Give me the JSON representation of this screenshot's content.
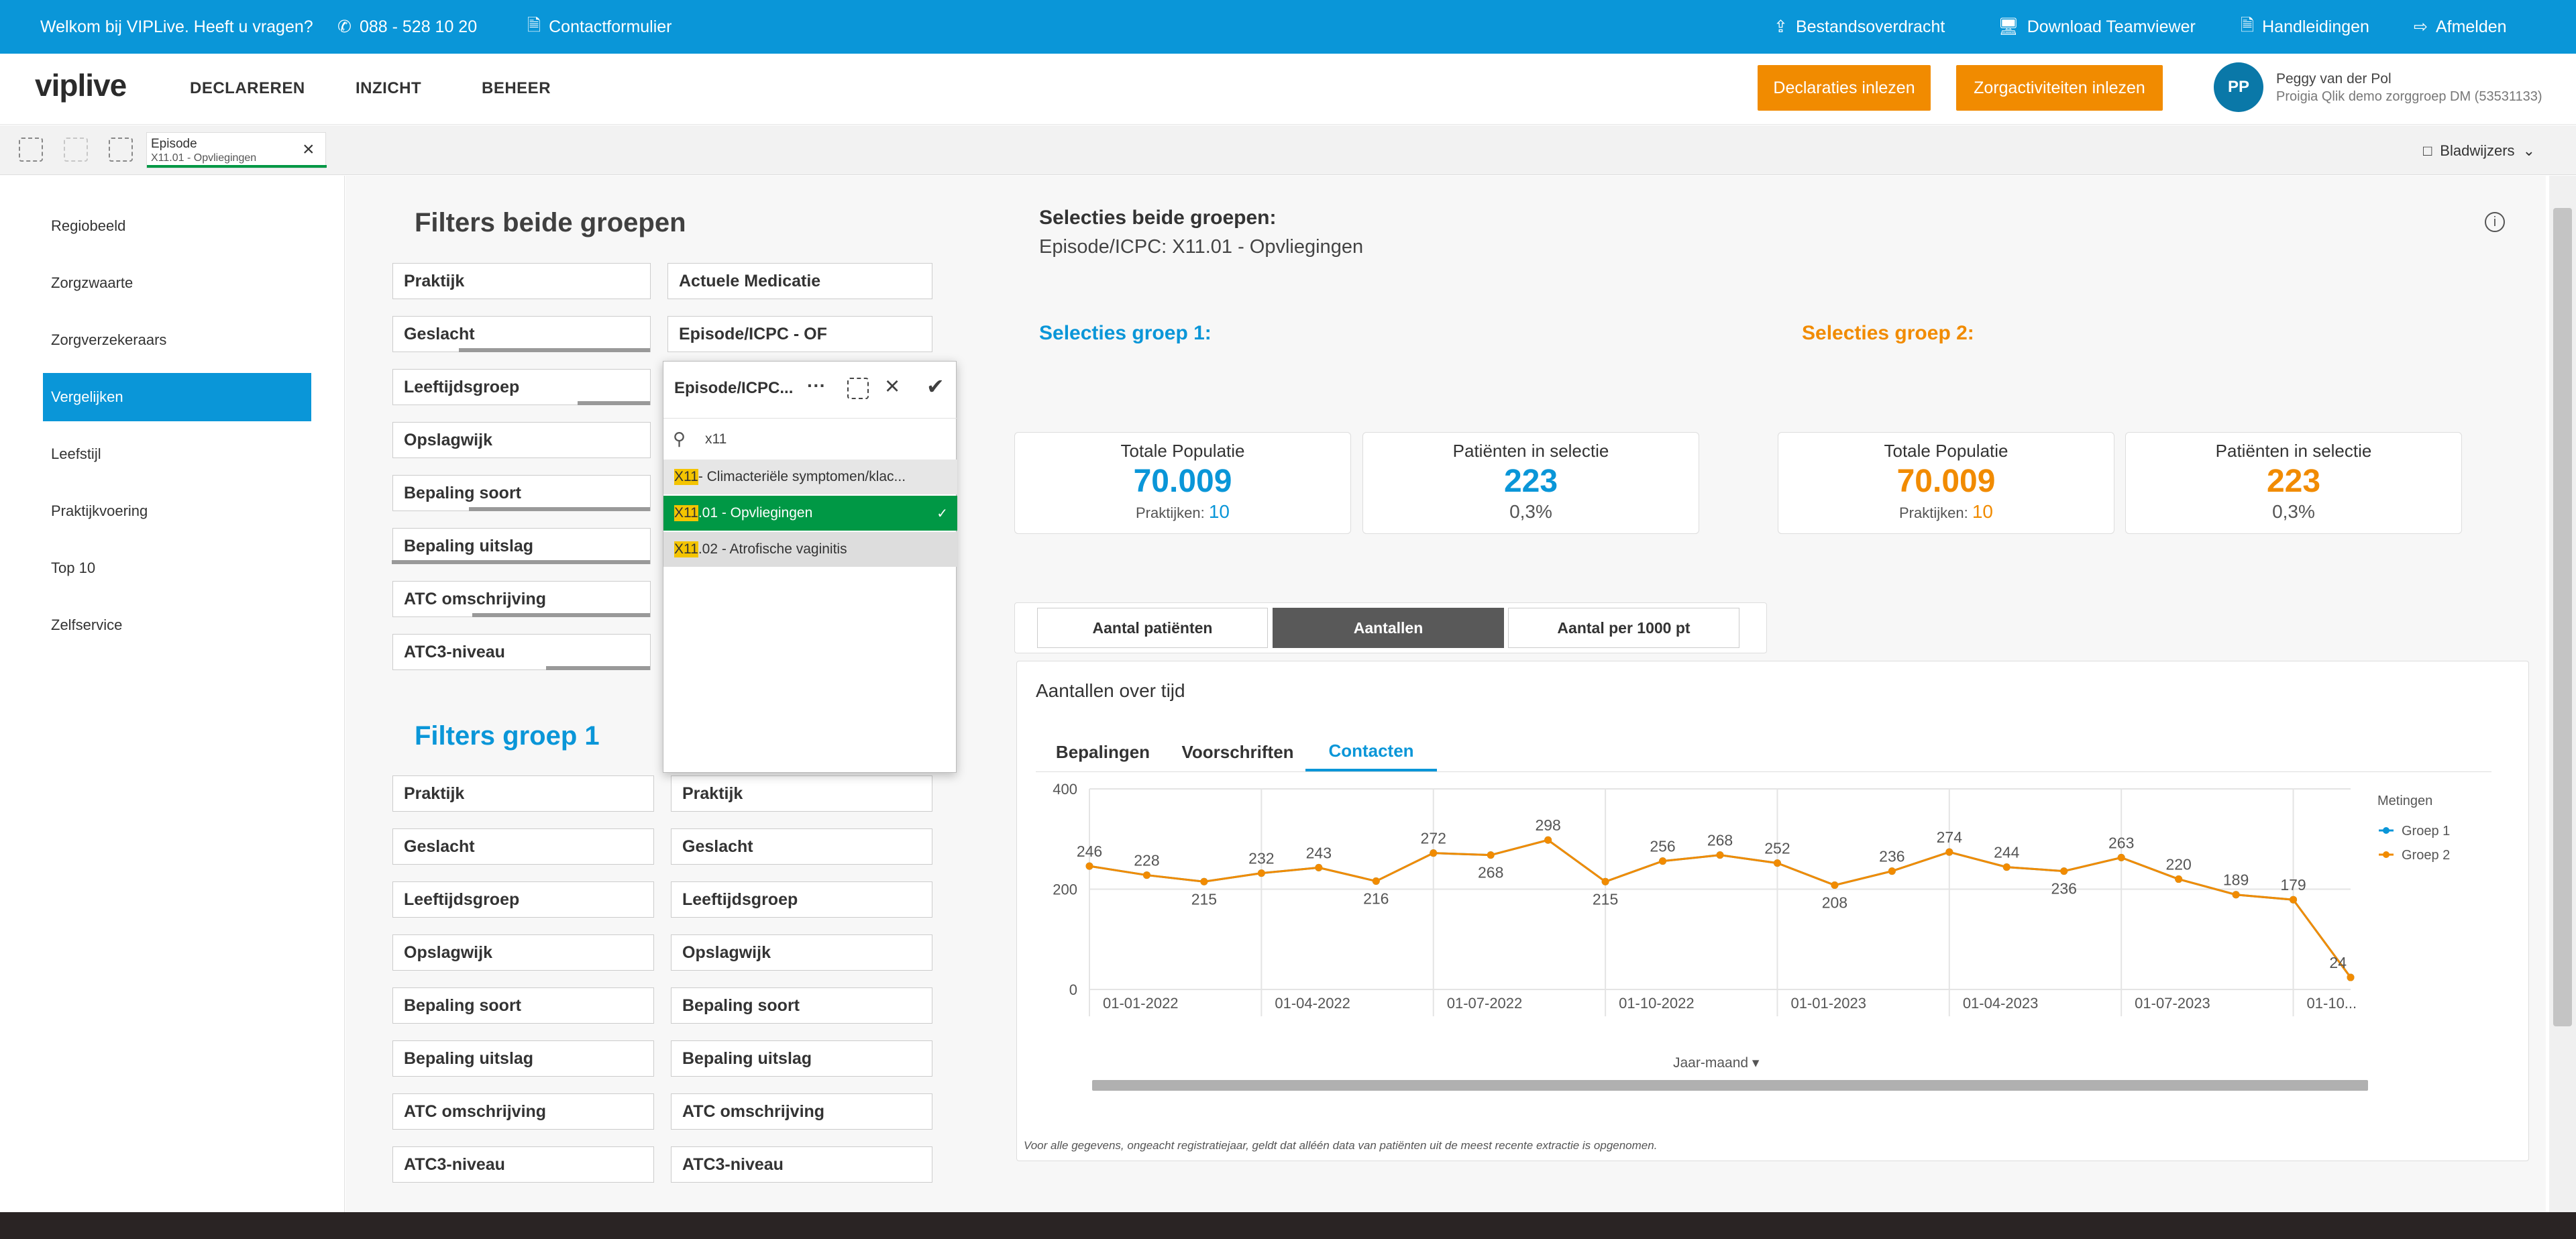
{
  "topbar": {
    "welcome": "Welkom bij VIPLive. Heeft u vragen?",
    "phone": "088 - 528 10 20",
    "contact": "Contactformulier",
    "transfer": "Bestandsoverdracht",
    "teamviewer": "Download Teamviewer",
    "manuals": "Handleidingen",
    "logout": "Afmelden"
  },
  "nav": {
    "logo": "viplive",
    "items": [
      "DECLAREREN",
      "INZICHT",
      "BEHEER"
    ],
    "btn_declaraties": "Declaraties inlezen",
    "btn_zorg": "Zorgactiviteiten inlezen",
    "user_initials": "PP",
    "user_name": "Peggy van der Pol",
    "user_org": "Proigia Qlik demo zorggroep DM (53531133)"
  },
  "selbar": {
    "chip_title": "Episode",
    "chip_value": "X11.01 - Opvliegingen",
    "bookmarks": "Bladwijzers"
  },
  "sidebar": {
    "items": [
      "Regiobeeld",
      "Zorgzwaarte",
      "Zorgverzekeraars",
      "Vergelijken",
      "Leefstijl",
      "Praktijkvoering",
      "Top 10",
      "Zelfservice"
    ]
  },
  "filters_both": {
    "title": "Filters beide groepen",
    "left": [
      "Praktijk",
      "Geslacht",
      "Leeftijdsgroep",
      "Opslagwijk",
      "Bepaling soort",
      "Bepaling uitslag",
      "ATC omschrijving",
      "ATC3-niveau"
    ],
    "right": [
      "Actuele Medicatie",
      "Episode/ICPC - OF"
    ]
  },
  "filters_g1": {
    "title": "Filters groep 1",
    "left": [
      "Praktijk",
      "Geslacht",
      "Leeftijdsgroep",
      "Opslagwijk",
      "Bepaling soort",
      "Bepaling uitslag",
      "ATC omschrijving",
      "ATC3-niveau"
    ],
    "right": [
      "Praktijk",
      "Geslacht",
      "Leeftijdsgroep",
      "Opslagwijk",
      "Bepaling soort",
      "Bepaling uitslag",
      "ATC omschrijving",
      "ATC3-niveau"
    ]
  },
  "popup": {
    "title": "Episode/ICPC...",
    "search": "x11",
    "rows": [
      {
        "match": "X11",
        "rest": " - Climacteriële symptomen/klac..."
      },
      {
        "match": "X11",
        "rest": ".01 - Opvliegingen"
      },
      {
        "match": "X11",
        "rest": ".02 - Atrofische vaginitis"
      }
    ]
  },
  "selections": {
    "both_title": "Selecties beide groepen:",
    "both_value": "Episode/ICPC: X11.01 - Opvliegingen",
    "g1_title": "Selecties groep 1:",
    "g2_title": "Selecties groep 2:"
  },
  "cards": [
    {
      "title": "Totale Populatie",
      "value": "70.009",
      "sub_label": "Praktijken:",
      "sub_value": "10"
    },
    {
      "title": "Patiënten in selectie",
      "value": "223",
      "sub_value": "0,3%"
    },
    {
      "title": "Totale Populatie",
      "value": "70.009",
      "sub_label": "Praktijken:",
      "sub_value": "10"
    },
    {
      "title": "Patiënten in selectie",
      "value": "223",
      "sub_value": "0,3%"
    }
  ],
  "measure_tabs": [
    "Aantal patiënten",
    "Aantallen",
    "Aantal per 1000 pt"
  ],
  "panel": {
    "title": "Aantallen over tijd",
    "tabs": [
      "Bepalingen",
      "Voorschriften",
      "Contacten"
    ],
    "footnote": "Voor alle gegevens, ongeacht registratiejaar, geldt dat alléén data van patiënten uit de meest recente extractie is opgenomen.",
    "dim_label": "Jaar-maand"
  },
  "colors": {
    "blue": "#0a96d8",
    "orange": "#f18b00",
    "green": "#009845",
    "accent_bar": "#0a96d8"
  },
  "chart_data": {
    "type": "line",
    "title": "",
    "xlabel": "Jaar-maand",
    "ylabel": "",
    "ylim": [
      0,
      400
    ],
    "yticks": [
      0,
      200,
      400
    ],
    "xticks": [
      "01-01-2022",
      "01-04-2022",
      "01-07-2022",
      "01-10-2022",
      "01-01-2023",
      "01-04-2023",
      "01-07-2023",
      "01-10..."
    ],
    "legend_title": "Metingen",
    "legend_position": "right",
    "grid": true,
    "x": [
      "2022-01",
      "2022-02",
      "2022-03",
      "2022-04",
      "2022-05",
      "2022-06",
      "2022-07",
      "2022-08",
      "2022-09",
      "2022-10",
      "2022-11",
      "2022-12",
      "2023-01",
      "2023-02",
      "2023-03",
      "2023-04",
      "2023-05",
      "2023-06",
      "2023-07",
      "2023-08",
      "2023-09",
      "2023-10",
      "2023-11"
    ],
    "series": [
      {
        "name": "Groep 1",
        "color": "#0a96d8",
        "values": [
          246,
          228,
          215,
          232,
          243,
          216,
          272,
          268,
          298,
          215,
          256,
          268,
          252,
          208,
          236,
          274,
          244,
          236,
          263,
          220,
          189,
          179,
          24
        ]
      },
      {
        "name": "Groep 2",
        "color": "#f18b00",
        "values": [
          246,
          228,
          215,
          232,
          243,
          216,
          272,
          268,
          298,
          215,
          256,
          268,
          252,
          208,
          236,
          274,
          244,
          236,
          263,
          220,
          189,
          179,
          24
        ]
      }
    ]
  }
}
